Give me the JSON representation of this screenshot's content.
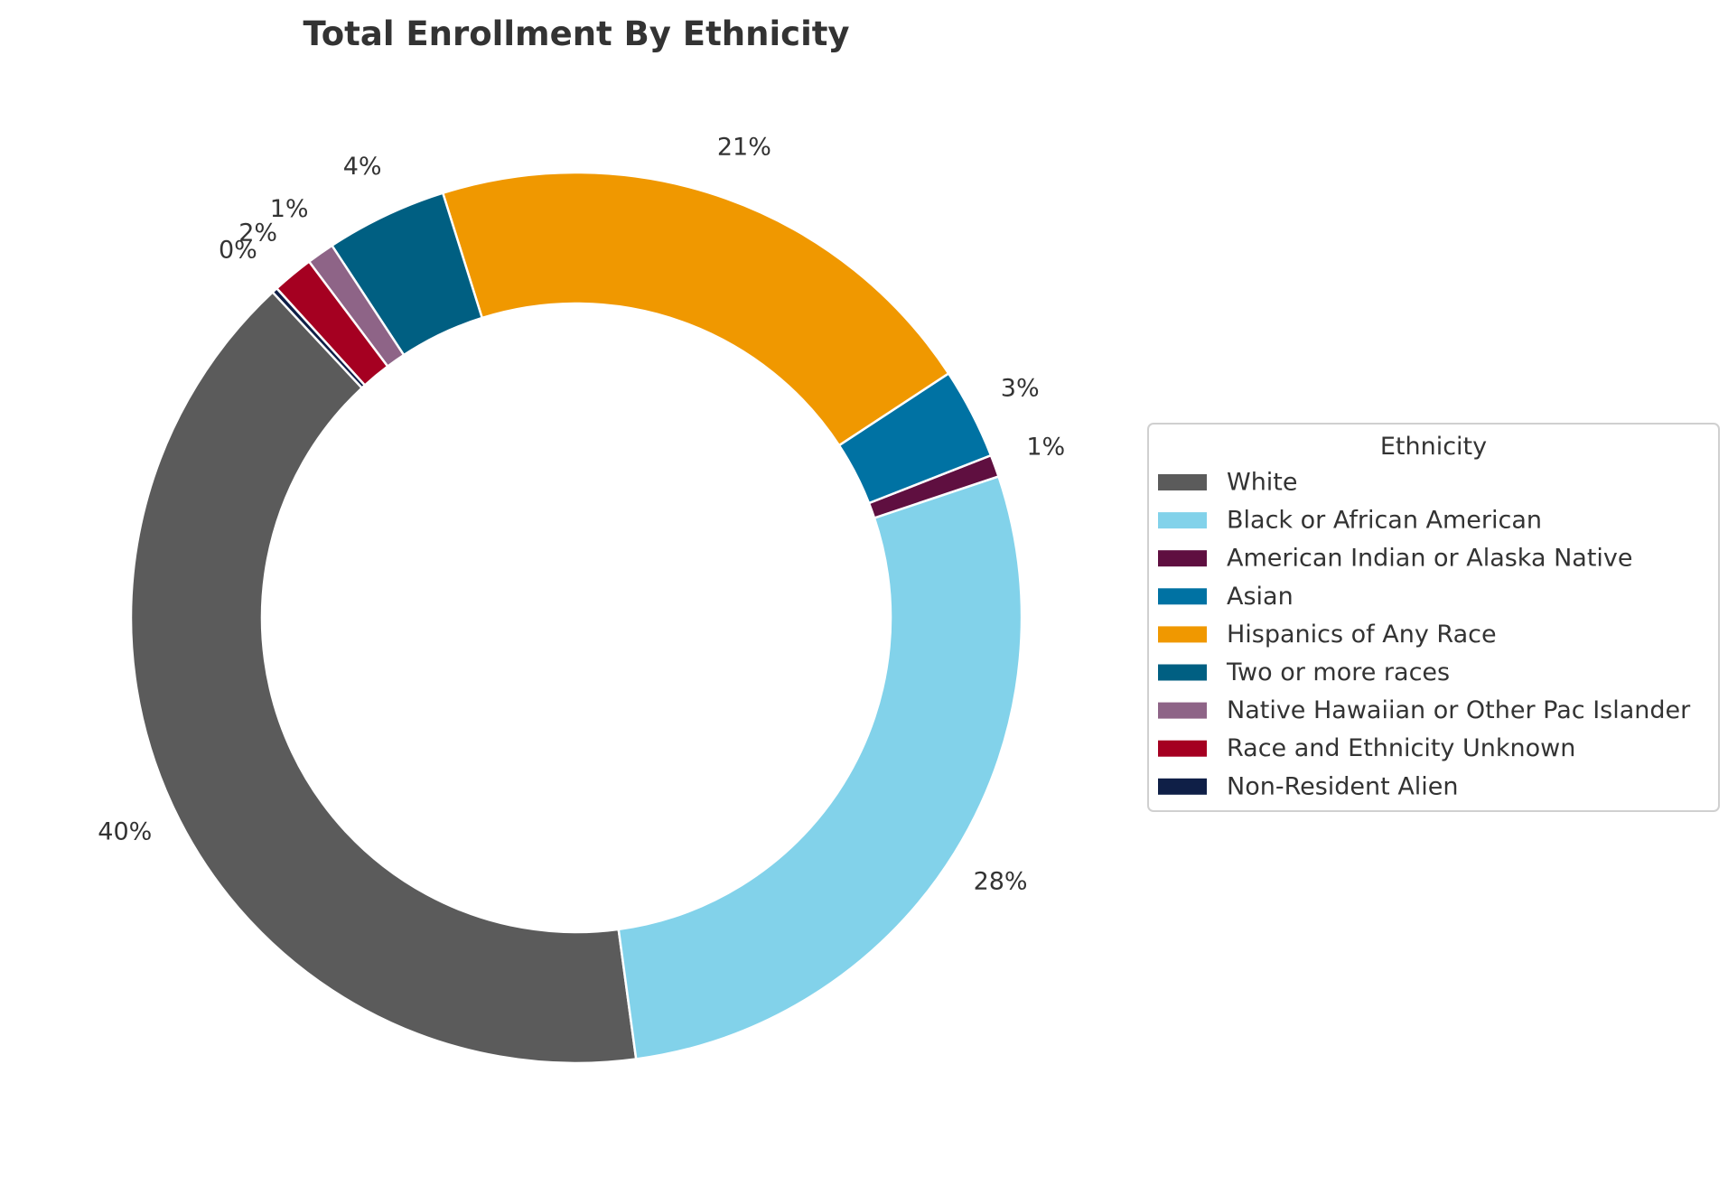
{
  "chart_data": {
    "type": "pie",
    "donut": true,
    "title": "Total Enrollment By Ethnicity",
    "start_angle_deg": 133,
    "legend": {
      "title": "Ethnicity",
      "placement": "right"
    },
    "slices": [
      {
        "name": "White",
        "value": 40.2,
        "label": "40%",
        "color": "#5b5b5b"
      },
      {
        "name": "Black or African American",
        "value": 28.0,
        "label": "28%",
        "color": "#82d2ea"
      },
      {
        "name": "American Indian or Alaska Native",
        "value": 0.8,
        "label": "1%",
        "color": "#5f0f40"
      },
      {
        "name": "Asian",
        "value": 3.3,
        "label": "3%",
        "color": "#0072a3"
      },
      {
        "name": "Hispanics of Any Race",
        "value": 20.6,
        "label": "21%",
        "color": "#f09800"
      },
      {
        "name": "Two or more races",
        "value": 4.4,
        "label": "4%",
        "color": "#005f82"
      },
      {
        "name": "Native Hawaiian or Other Pac Islander",
        "value": 1.0,
        "label": "1%",
        "color": "#8e6487"
      },
      {
        "name": "Race and Ethnicity Unknown",
        "value": 1.5,
        "label": "2%",
        "color": "#a50021"
      },
      {
        "name": "Non-Resident Alien",
        "value": 0.2,
        "label": "0%",
        "color": "#0f1f47"
      }
    ]
  }
}
